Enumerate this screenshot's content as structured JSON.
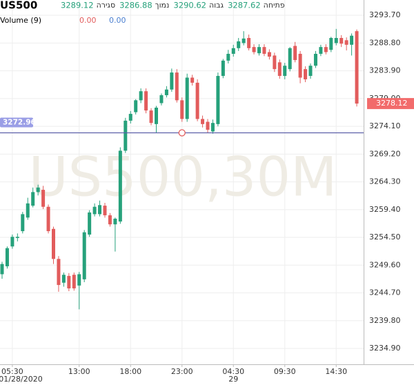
{
  "chart_data": {
    "type": "candlestick",
    "title": "US500",
    "ohlc_legend": [
      {
        "value": "3289.12",
        "label": "סגירה"
      },
      {
        "value": "3286.88",
        "label": "נמוך"
      },
      {
        "value": "3290.62",
        "label": "גבוה"
      },
      {
        "value": "3287.62",
        "label": "פתיחה"
      }
    ],
    "volume_label": "Volume (9)",
    "volume_values": [
      "0.00",
      "0.00"
    ],
    "watermark": "US500,30M",
    "up_color": "#26a17b",
    "down_color": "#e25c5c",
    "open": [
      3248.0,
      3249.4,
      3252.9,
      3254.4,
      3255.6,
      3258.0,
      3260.1,
      3262.5,
      3262.9,
      3259.9,
      3256.0,
      3250.7,
      3246.5,
      3247.7,
      3247.9,
      3246.0,
      3247.1,
      3255.0,
      3258.6,
      3258.6,
      3260.1,
      3258.4,
      3256.8,
      3257.3,
      3269.8,
      3275.1,
      3276.6,
      3278.7,
      3280.3,
      3276.9,
      3274.5,
      3278.2,
      3279.6,
      3280.6,
      3283.6,
      3278.7,
      3275.4,
      3282.7,
      3281.8,
      3275.4,
      3274.9,
      3273.2,
      3274.5,
      3283.0,
      3285.7,
      3286.9,
      3287.9,
      3288.8,
      3289.7,
      3288.1,
      3287.0,
      3288.1,
      3287.2,
      3286.6,
      3285.4,
      3283.0,
      3284.2,
      3288.3,
      3286.9,
      3284.2,
      3283.0,
      3284.8,
      3286.9,
      3288.1,
      3287.6,
      3288.8,
      3289.7,
      3289.3,
      3288.5,
      3290.9
    ],
    "high": [
      3250.2,
      3252.9,
      3255.0,
      3255.2,
      3259.0,
      3261.5,
      3263.3,
      3263.8,
      3263.6,
      3260.3,
      3256.4,
      3251.2,
      3248.3,
      3248.2,
      3248.3,
      3248.4,
      3255.8,
      3259.3,
      3260.5,
      3261.0,
      3260.6,
      3258.8,
      3258.0,
      3270.4,
      3275.6,
      3276.8,
      3278.9,
      3280.8,
      3280.8,
      3277.3,
      3277.7,
      3279.9,
      3281.2,
      3284.3,
      3284.2,
      3279.2,
      3283.4,
      3283.2,
      3282.4,
      3276.0,
      3275.4,
      3275.3,
      3283.6,
      3286.0,
      3287.6,
      3288.5,
      3289.7,
      3290.9,
      3290.3,
      3288.6,
      3288.6,
      3288.6,
      3287.7,
      3287.1,
      3285.9,
      3285.3,
      3288.1,
      3289.0,
      3287.4,
      3284.7,
      3285.2,
      3287.4,
      3288.5,
      3288.6,
      3289.9,
      3291.3,
      3290.2,
      3289.8,
      3290.5,
      3291.2
    ],
    "low": [
      3247.2,
      3249.0,
      3252.5,
      3253.8,
      3255.2,
      3257.6,
      3259.8,
      3261.9,
      3259.5,
      3255.2,
      3249.8,
      3244.9,
      3245.8,
      3245.0,
      3245.1,
      3241.8,
      3246.6,
      3254.6,
      3258.2,
      3258.2,
      3258.0,
      3256.4,
      3252.0,
      3256.9,
      3269.4,
      3274.6,
      3276.2,
      3278.2,
      3276.4,
      3274.3,
      3272.9,
      3277.8,
      3279.2,
      3280.2,
      3278.3,
      3274.9,
      3274.9,
      3281.3,
      3275.0,
      3273.9,
      3272.9,
      3272.8,
      3274.1,
      3282.6,
      3285.2,
      3286.4,
      3287.4,
      3288.4,
      3287.5,
      3286.8,
      3286.6,
      3286.5,
      3285.9,
      3283.7,
      3282.5,
      3282.4,
      3283.8,
      3285.4,
      3281.7,
      3281.9,
      3282.5,
      3284.4,
      3286.5,
      3286.8,
      3287.2,
      3288.4,
      3288.1,
      3287.5,
      3286.6,
      3277.6
    ],
    "close": [
      3249.8,
      3252.6,
      3254.6,
      3254.6,
      3258.6,
      3260.5,
      3262.5,
      3263.3,
      3259.9,
      3255.6,
      3250.7,
      3246.1,
      3247.9,
      3245.5,
      3245.5,
      3248.0,
      3255.4,
      3258.9,
      3259.9,
      3260.2,
      3258.4,
      3256.8,
      3257.8,
      3269.8,
      3275.1,
      3276.3,
      3278.7,
      3280.3,
      3276.9,
      3274.7,
      3277.4,
      3279.6,
      3280.6,
      3283.6,
      3278.7,
      3275.4,
      3282.7,
      3281.8,
      3275.4,
      3274.5,
      3273.5,
      3274.7,
      3283.0,
      3285.7,
      3286.9,
      3287.9,
      3289.1,
      3289.6,
      3287.9,
      3287.2,
      3288.1,
      3286.9,
      3286.4,
      3284.2,
      3283.0,
      3284.8,
      3287.9,
      3285.8,
      3282.7,
      3282.4,
      3284.8,
      3286.9,
      3288.1,
      3287.2,
      3289.7,
      3289.7,
      3288.7,
      3288.5,
      3290.1,
      3278.12
    ],
    "price_line": 3272.96,
    "ylim": [
      3232.1,
      3296.4
    ],
    "yticks": [
      {
        "value": 3293.7,
        "label": "3293.70"
      },
      {
        "value": 3288.8,
        "label": "3288.80"
      },
      {
        "value": 3283.9,
        "label": "3283.90"
      },
      {
        "value": 3279.0,
        "label": "3279.00"
      },
      {
        "value": 3274.1,
        "label": "3274.10"
      },
      {
        "value": 3269.2,
        "label": "3269.20"
      },
      {
        "value": 3264.3,
        "label": "3264.30"
      },
      {
        "value": 3259.4,
        "label": "3259.40"
      },
      {
        "value": 3254.5,
        "label": "3254.50"
      },
      {
        "value": 3249.6,
        "label": "3249.60"
      },
      {
        "value": 3244.7,
        "label": "3244.70"
      },
      {
        "value": 3239.8,
        "label": "3239.80"
      },
      {
        "value": 3234.9,
        "label": "3234.90"
      }
    ],
    "xticks": [
      {
        "value": 2,
        "label": "05:30",
        "date": "01/28/2020"
      },
      {
        "value": 15,
        "label": "13:00"
      },
      {
        "value": 25,
        "label": "18:00"
      },
      {
        "value": 35,
        "label": "23:00"
      },
      {
        "value": 45,
        "label": "04:30",
        "date": "29"
      },
      {
        "value": 55,
        "label": "09:30"
      },
      {
        "value": 65,
        "label": "14:30"
      }
    ],
    "grid": true
  }
}
